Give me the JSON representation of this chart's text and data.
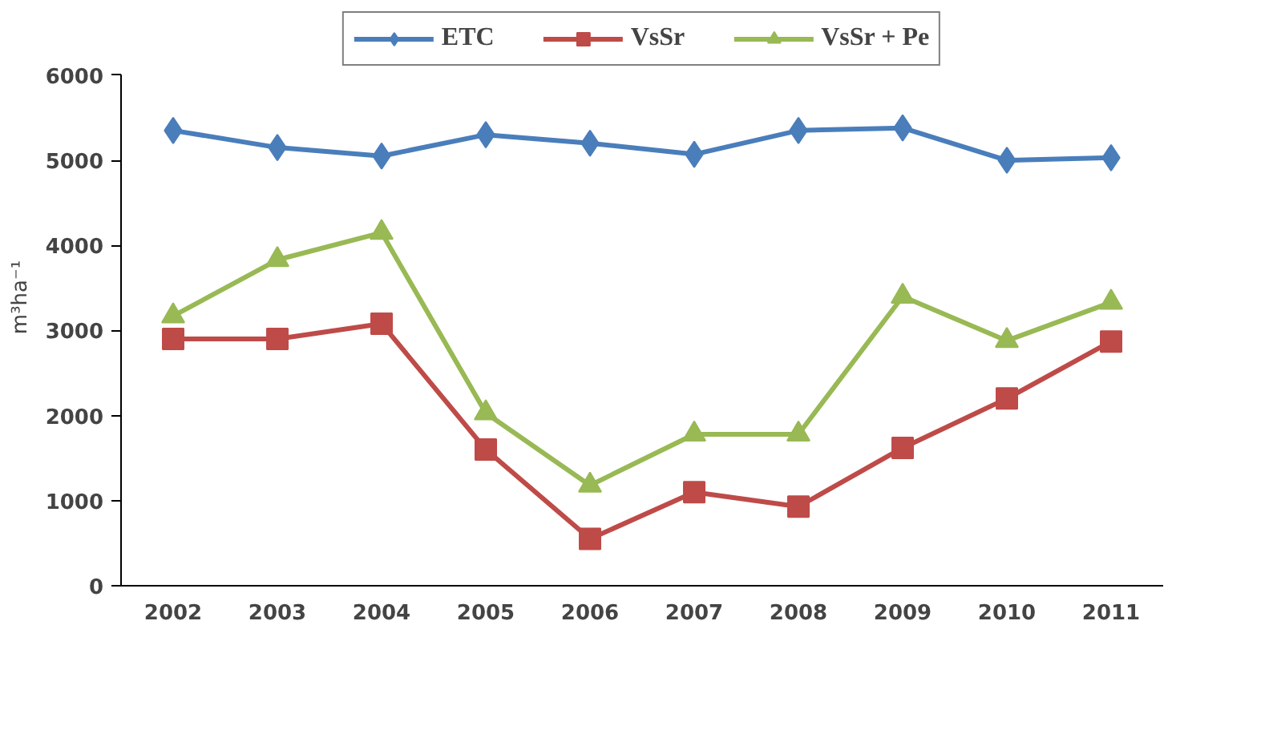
{
  "chart_data": {
    "type": "line",
    "ylabel": "m³ha⁻¹",
    "categories": [
      "2002",
      "2003",
      "2004",
      "2005",
      "2006",
      "2007",
      "2008",
      "2009",
      "2010",
      "2011"
    ],
    "series": [
      {
        "name": "ETC",
        "color": "#4a7ebb",
        "marker": "diamond",
        "values": [
          5350,
          5150,
          5050,
          5300,
          5200,
          5070,
          5350,
          5380,
          5000,
          5030
        ]
      },
      {
        "name": "VsSr",
        "color": "#be4b48",
        "marker": "square",
        "values": [
          2900,
          2900,
          3080,
          1600,
          550,
          1100,
          930,
          1620,
          2200,
          2870
        ]
      },
      {
        "name": "VsSr + Pe",
        "color": "#98b954",
        "marker": "triangle",
        "values": [
          3170,
          3830,
          4150,
          2030,
          1180,
          1780,
          1780,
          3400,
          2880,
          3330
        ]
      }
    ],
    "ylim": [
      0,
      6000
    ],
    "yticks": [
      0,
      1000,
      2000,
      3000,
      4000,
      5000,
      6000
    ],
    "grid": false,
    "legend": "top",
    "line_style": "solid"
  }
}
